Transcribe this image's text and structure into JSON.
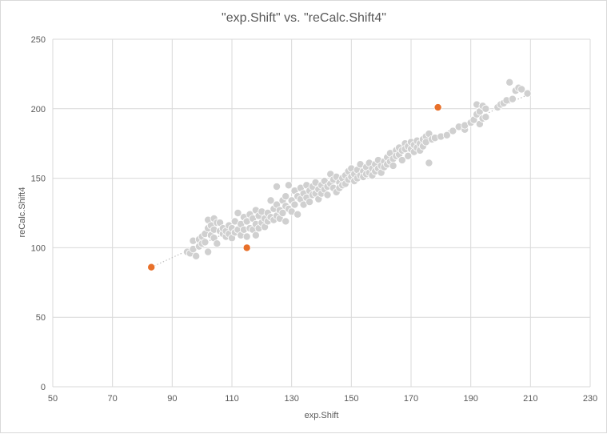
{
  "chart_data": {
    "type": "scatter",
    "title": "\"exp.Shift\" vs. \"reCalc.Shift4\"",
    "xlabel": "exp.Shift",
    "ylabel": "reCalc.Shift4",
    "xlim": [
      50,
      230
    ],
    "ylim": [
      0,
      250
    ],
    "x_ticks": [
      50,
      70,
      90,
      110,
      130,
      150,
      170,
      190,
      210,
      230
    ],
    "y_ticks": [
      0,
      50,
      100,
      150,
      200,
      250
    ],
    "grid": true,
    "legend": "none",
    "trendline": {
      "style": "dotted",
      "x": [
        83,
        209
      ],
      "y": [
        86,
        210
      ]
    },
    "colors": {
      "points": "#d0d0d0",
      "highlight": "#e8702a",
      "grid": "#d9d9d9",
      "trendline": "#bfbfbf"
    },
    "series": [
      {
        "points": [
          [
            95,
            97
          ],
          [
            96,
            96
          ],
          [
            97,
            99
          ],
          [
            97,
            105
          ],
          [
            98,
            94
          ],
          [
            99,
            101
          ],
          [
            99,
            106
          ],
          [
            100,
            103
          ],
          [
            100,
            108
          ],
          [
            101,
            110
          ],
          [
            101,
            104
          ],
          [
            102,
            97
          ],
          [
            102,
            120
          ],
          [
            102,
            114
          ],
          [
            103,
            116
          ],
          [
            103,
            109
          ],
          [
            104,
            121
          ],
          [
            104,
            113
          ],
          [
            104,
            107
          ],
          [
            105,
            118
          ],
          [
            105,
            103
          ],
          [
            106,
            112
          ],
          [
            106,
            118
          ],
          [
            107,
            110
          ],
          [
            107,
            114
          ],
          [
            108,
            108
          ],
          [
            108,
            112
          ],
          [
            109,
            116
          ],
          [
            109,
            110
          ],
          [
            110,
            114
          ],
          [
            110,
            107
          ],
          [
            111,
            119
          ],
          [
            111,
            111
          ],
          [
            112,
            125
          ],
          [
            112,
            113
          ],
          [
            113,
            109
          ],
          [
            113,
            117
          ],
          [
            114,
            122
          ],
          [
            114,
            113
          ],
          [
            115,
            119
          ],
          [
            115,
            108
          ],
          [
            116,
            124
          ],
          [
            116,
            114
          ],
          [
            117,
            121
          ],
          [
            117,
            113
          ],
          [
            118,
            127
          ],
          [
            118,
            117
          ],
          [
            118,
            109
          ],
          [
            119,
            123
          ],
          [
            119,
            114
          ],
          [
            120,
            126
          ],
          [
            120,
            118
          ],
          [
            121,
            121
          ],
          [
            121,
            115
          ],
          [
            122,
            125
          ],
          [
            122,
            119
          ],
          [
            123,
            134
          ],
          [
            123,
            122
          ],
          [
            124,
            128
          ],
          [
            124,
            120
          ],
          [
            125,
            144
          ],
          [
            125,
            131
          ],
          [
            125,
            123
          ],
          [
            126,
            127
          ],
          [
            126,
            121
          ],
          [
            127,
            134
          ],
          [
            127,
            125
          ],
          [
            128,
            137
          ],
          [
            128,
            130
          ],
          [
            128,
            119
          ],
          [
            129,
            145
          ],
          [
            129,
            128
          ],
          [
            130,
            134
          ],
          [
            130,
            126
          ],
          [
            131,
            141
          ],
          [
            131,
            131
          ],
          [
            132,
            137
          ],
          [
            132,
            124
          ],
          [
            133,
            143
          ],
          [
            133,
            135
          ],
          [
            134,
            139
          ],
          [
            134,
            131
          ],
          [
            135,
            145
          ],
          [
            135,
            136
          ],
          [
            136,
            141
          ],
          [
            136,
            133
          ],
          [
            137,
            138
          ],
          [
            137,
            144
          ],
          [
            138,
            147
          ],
          [
            138,
            139
          ],
          [
            139,
            142
          ],
          [
            139,
            135
          ],
          [
            140,
            145
          ],
          [
            140,
            139
          ],
          [
            141,
            148
          ],
          [
            141,
            142
          ],
          [
            142,
            144
          ],
          [
            142,
            138
          ],
          [
            143,
            153
          ],
          [
            143,
            146
          ],
          [
            144,
            149
          ],
          [
            144,
            143
          ],
          [
            145,
            151
          ],
          [
            145,
            140
          ],
          [
            146,
            147
          ],
          [
            146,
            143
          ],
          [
            147,
            150
          ],
          [
            147,
            145
          ],
          [
            148,
            152
          ],
          [
            148,
            146
          ],
          [
            149,
            155
          ],
          [
            149,
            149
          ],
          [
            150,
            157
          ],
          [
            150,
            151
          ],
          [
            151,
            153
          ],
          [
            151,
            148
          ],
          [
            152,
            156
          ],
          [
            152,
            150
          ],
          [
            153,
            160
          ],
          [
            153,
            152
          ],
          [
            154,
            155
          ],
          [
            154,
            151
          ],
          [
            155,
            158
          ],
          [
            155,
            153
          ],
          [
            156,
            161
          ],
          [
            156,
            154
          ],
          [
            157,
            157
          ],
          [
            157,
            152
          ],
          [
            158,
            160
          ],
          [
            158,
            155
          ],
          [
            159,
            163
          ],
          [
            159,
            157
          ],
          [
            160,
            159
          ],
          [
            160,
            154
          ],
          [
            161,
            162
          ],
          [
            161,
            158
          ],
          [
            162,
            165
          ],
          [
            162,
            160
          ],
          [
            163,
            168
          ],
          [
            163,
            162
          ],
          [
            164,
            164
          ],
          [
            164,
            159
          ],
          [
            165,
            170
          ],
          [
            165,
            166
          ],
          [
            166,
            172
          ],
          [
            166,
            167
          ],
          [
            167,
            170
          ],
          [
            167,
            163
          ],
          [
            168,
            175
          ],
          [
            168,
            171
          ],
          [
            169,
            173
          ],
          [
            169,
            166
          ],
          [
            170,
            176
          ],
          [
            170,
            171
          ],
          [
            171,
            174
          ],
          [
            171,
            169
          ],
          [
            172,
            177
          ],
          [
            172,
            172
          ],
          [
            173,
            175
          ],
          [
            173,
            170
          ],
          [
            174,
            178
          ],
          [
            174,
            173
          ],
          [
            175,
            180
          ],
          [
            175,
            176
          ],
          [
            176,
            182
          ],
          [
            176,
            161
          ],
          [
            177,
            178
          ],
          [
            178,
            179
          ],
          [
            180,
            180
          ],
          [
            182,
            181
          ],
          [
            184,
            184
          ],
          [
            186,
            187
          ],
          [
            188,
            185
          ],
          [
            188,
            188
          ],
          [
            190,
            190
          ],
          [
            191,
            192
          ],
          [
            192,
            196
          ],
          [
            192,
            203
          ],
          [
            193,
            198
          ],
          [
            193,
            189
          ],
          [
            194,
            202
          ],
          [
            194,
            193
          ],
          [
            195,
            200
          ],
          [
            195,
            194
          ],
          [
            199,
            201
          ],
          [
            200,
            203
          ],
          [
            201,
            204
          ],
          [
            202,
            206
          ],
          [
            203,
            219
          ],
          [
            204,
            207
          ],
          [
            205,
            213
          ],
          [
            206,
            215
          ],
          [
            207,
            214
          ],
          [
            209,
            211
          ]
        ]
      },
      {
        "points": [
          [
            83,
            86
          ],
          [
            115,
            100
          ],
          [
            179,
            201
          ]
        ]
      }
    ]
  }
}
